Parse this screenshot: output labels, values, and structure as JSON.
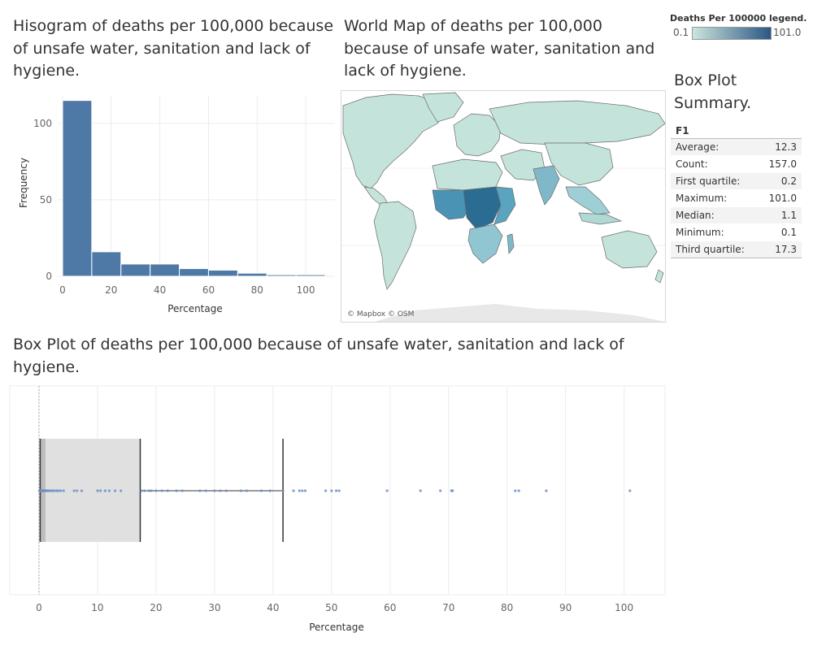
{
  "histogram": {
    "title": "Hisogram of deaths per 100,000 because of unsafe water, sanitation and lack of hygiene."
  },
  "map": {
    "title": "World Map of deaths per 100,000 because of unsafe water, sanitation and lack of hygiene.",
    "attribution": "© Mapbox © OSM"
  },
  "boxplot": {
    "title": "Box Plot of deaths per 100,000 because of unsafe water, sanitation and lack of hygiene."
  },
  "legend": {
    "title": "Deaths Per 100000 legend.",
    "min_label": "0.1",
    "max_label": "101.0",
    "color_low": "#cce5dd",
    "color_high": "#2a5783"
  },
  "summary": {
    "title": "Box Plot Summary.",
    "header": "F1",
    "rows": [
      {
        "label": "Average:",
        "value": "12.3"
      },
      {
        "label": "Count:",
        "value": "157.0"
      },
      {
        "label": "First quartile:",
        "value": "0.2"
      },
      {
        "label": "Maximum:",
        "value": "101.0"
      },
      {
        "label": "Median:",
        "value": "1.1"
      },
      {
        "label": "Minimum:",
        "value": "0.1"
      },
      {
        "label": "Third quartile:",
        "value": "17.3"
      }
    ]
  },
  "colors": {
    "bar": "#4e79a7",
    "box": "#e0e0e0",
    "box_border": "#333333",
    "point": "#6d8fc6",
    "map_land": "#c4e3da",
    "map_high": "#2a6c92"
  },
  "chart_data": [
    {
      "type": "bar",
      "xlabel": "Percentage",
      "ylabel": "Frequency",
      "x_ticks": [
        "0",
        "20",
        "40",
        "60",
        "80",
        "100"
      ],
      "y_ticks": [
        "0",
        "50",
        "100"
      ],
      "bin_width": 12,
      "bin_starts": [
        0,
        12,
        24,
        36,
        48,
        60,
        72,
        84,
        96
      ],
      "values": [
        115,
        16,
        8,
        8,
        5,
        4,
        2,
        1,
        1
      ],
      "ylim": [
        0,
        118
      ],
      "xlim": [
        -2,
        112
      ],
      "grid": true
    },
    {
      "type": "scatter",
      "subtype": "boxplot",
      "xlabel": "Percentage",
      "x_ticks": [
        "0",
        "10",
        "20",
        "30",
        "40",
        "50",
        "60",
        "70",
        "80",
        "90",
        "100"
      ],
      "xlim": [
        -5,
        107
      ],
      "min": 0.1,
      "q1": 0.2,
      "median": 1.1,
      "q3": 17.3,
      "whisker_high": 41.7,
      "max": 101.0,
      "points": [
        0.1,
        0.1,
        0.1,
        0.1,
        0.2,
        0.2,
        0.2,
        0.2,
        0.2,
        0.3,
        0.3,
        0.3,
        0.4,
        0.4,
        0.5,
        0.5,
        0.6,
        0.6,
        0.7,
        0.8,
        0.9,
        1.0,
        1.1,
        1.2,
        1.3,
        1.5,
        1.7,
        2.0,
        2.3,
        2.6,
        3.0,
        3.3,
        3.7,
        4.2,
        6.0,
        6.5,
        7.3,
        10.0,
        10.5,
        11.3,
        12.0,
        13.0,
        14.0,
        17.5,
        18.0,
        18.8,
        19.2,
        20.0,
        21.0,
        22.0,
        23.5,
        24.5,
        27.5,
        28.5,
        30.0,
        31.0,
        32.0,
        34.5,
        35.5,
        38.0,
        39.5,
        41.7,
        43.5,
        44.5,
        45.0,
        45.5,
        49.0,
        50.0,
        50.8,
        51.3,
        59.5,
        65.2,
        68.6,
        70.5,
        70.7,
        81.4,
        82.0,
        86.7,
        101.0
      ],
      "grid": true
    }
  ]
}
